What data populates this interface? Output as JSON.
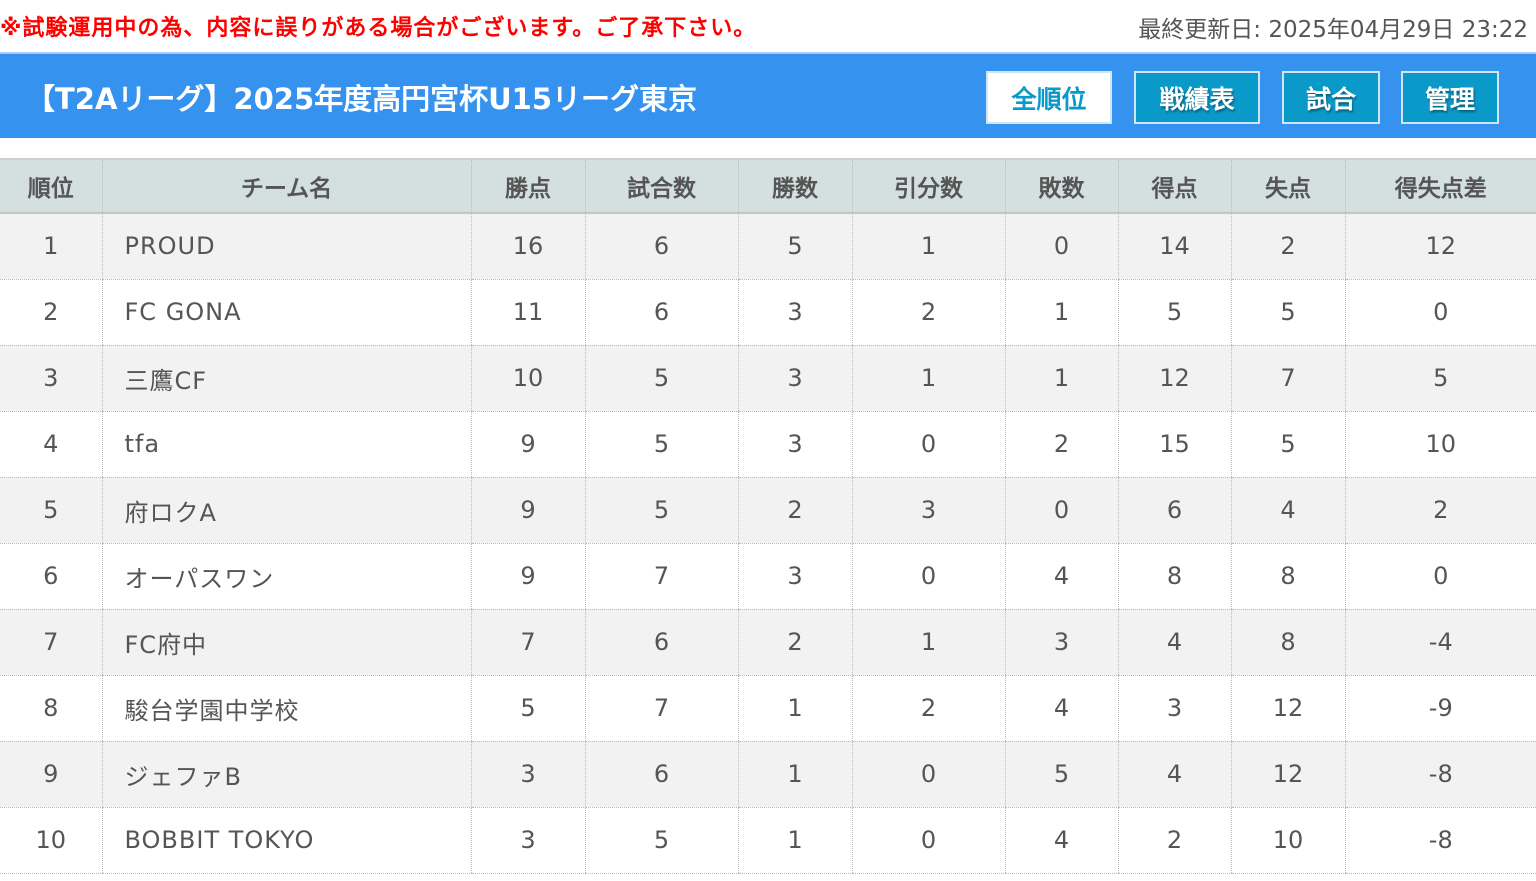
{
  "notice": "※試験運用中の為、内容に誤りがある場合がございます。ご了承下さい。",
  "updated": "最終更新日: 2025年04月29日 23:22",
  "title": "【T2Aリーグ】2025年度高円宮杯U15リーグ東京",
  "nav": [
    {
      "label": "全順位",
      "active": true
    },
    {
      "label": "戦績表"
    },
    {
      "label": "試合"
    },
    {
      "label": "管理"
    }
  ],
  "colors": {
    "banner": "#3592ee",
    "button": "#0a9ac9",
    "notice": "#ff0000"
  },
  "columns": [
    "順位",
    "チーム名",
    "勝点",
    "試合数",
    "勝数",
    "引分数",
    "敗数",
    "得点",
    "失点",
    "得失点差"
  ],
  "rows": [
    [
      "1",
      "PROUD",
      "16",
      "6",
      "5",
      "1",
      "0",
      "14",
      "2",
      "12"
    ],
    [
      "2",
      "FC GONA",
      "11",
      "6",
      "3",
      "2",
      "1",
      "5",
      "5",
      "0"
    ],
    [
      "3",
      "三鷹CF",
      "10",
      "5",
      "3",
      "1",
      "1",
      "12",
      "7",
      "5"
    ],
    [
      "4",
      "tfa",
      "9",
      "5",
      "3",
      "0",
      "2",
      "15",
      "5",
      "10"
    ],
    [
      "5",
      "府ロクA",
      "9",
      "5",
      "2",
      "3",
      "0",
      "6",
      "4",
      "2"
    ],
    [
      "6",
      "オーパスワン",
      "9",
      "7",
      "3",
      "0",
      "4",
      "8",
      "8",
      "0"
    ],
    [
      "7",
      "FC府中",
      "7",
      "6",
      "2",
      "1",
      "3",
      "4",
      "8",
      "-4"
    ],
    [
      "8",
      "駿台学園中学校",
      "5",
      "7",
      "1",
      "2",
      "4",
      "3",
      "12",
      "-9"
    ],
    [
      "9",
      "ジェファB",
      "3",
      "6",
      "1",
      "0",
      "5",
      "4",
      "12",
      "-8"
    ],
    [
      "10",
      "BOBBIT TOKYO",
      "3",
      "5",
      "1",
      "0",
      "4",
      "2",
      "10",
      "-8"
    ]
  ]
}
